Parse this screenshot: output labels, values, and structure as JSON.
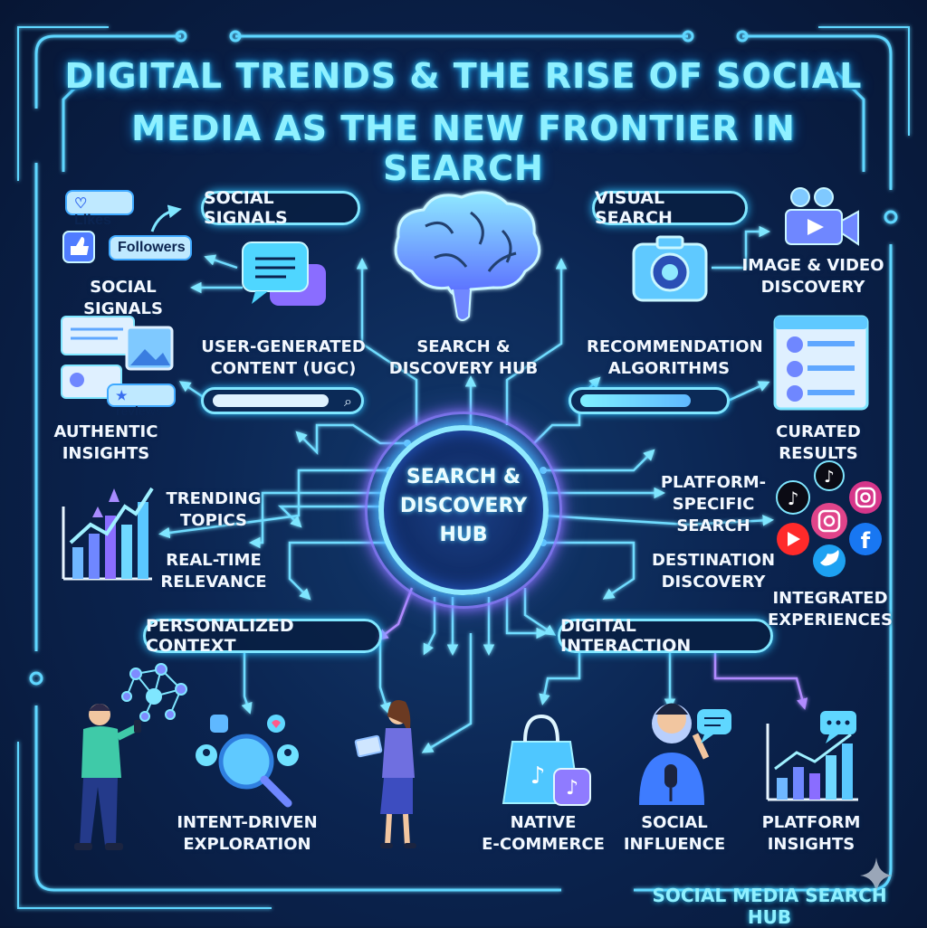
{
  "title": {
    "line1": "DIGITAL TRENDS & THE RISE OF SOCIAL",
    "line2": "MEDIA AS THE NEW FRONTIER IN SEARCH"
  },
  "hub": {
    "center": "SEARCH &\nDISCOVERY\nHUB",
    "brain_label": "SEARCH &\nDISCOVERY HUB"
  },
  "pills": {
    "social_signals": "SOCIAL SIGNALS",
    "visual_search": "VISUAL SEARCH",
    "personalized_context": "PERSONALIZED CONTEXT",
    "digital_interaction": "DIGITAL INTERACTION"
  },
  "chips": {
    "likes": "Likes",
    "followers": "Followers",
    "reviews": "reviews"
  },
  "labels": {
    "social_signals": "SOCIAL SIGNALS",
    "ugc": "USER-GENERATED\nCONTENT (UGC)",
    "authentic_insights": "AUTHENTIC\nINSIGHTS",
    "trending_topics": "TRENDING\nTOPICS",
    "real_time": "REAL-TIME\nRELEVANCE",
    "image_video": "IMAGE & VIDEO\nDISCOVERY",
    "recommendation": "RECOMMENDATION\nALGORITHMS",
    "curated_results": "CURATED RESULTS",
    "platform_specific": "PLATFORM-\nSPECIFIC\nSEARCH",
    "destination_discovery": "DESTINATION\nDISCOVERY",
    "integrated_experiences": "INTEGRATED\nEXPERIENCES",
    "intent_driven": "INTENT-DRIVEN\nEXPLORATION",
    "native_ecommerce": "NATIVE\nE-COMMERCE",
    "social_influence": "SOCIAL\nINFLUENCE",
    "platform_insights": "PLATFORM\nINSIGHTS"
  },
  "footer": "SOCIAL MEDIA SEARCH HUB",
  "colors": {
    "background": "#0b2450",
    "accent": "#7fe6ff",
    "glow": "#2fc2ff",
    "violet": "#a06bff",
    "title": "#8ff0ff"
  },
  "icons": [
    "likes-icon",
    "thumbs-up-icon",
    "chat-bubbles-icon",
    "reviews-icon",
    "trend-chart-icon",
    "brain-icon",
    "camera-icon",
    "video-camera-icon",
    "results-list-icon",
    "tiktok-icon",
    "instagram-icon",
    "youtube-icon",
    "twitter-icon",
    "facebook-icon",
    "network-icon",
    "person-icon",
    "magnifier-icon",
    "woman-tablet-icon",
    "shopping-bag-icon",
    "influencer-icon",
    "insights-chart-icon",
    "sparkle-icon"
  ]
}
